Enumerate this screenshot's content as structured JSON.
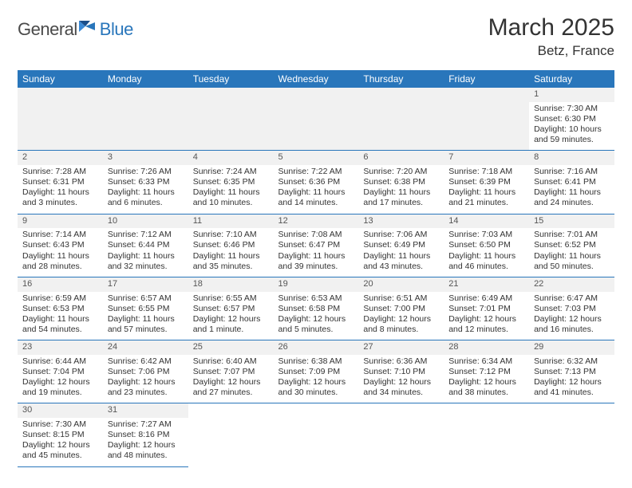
{
  "brand": {
    "general": "General",
    "blue": "Blue"
  },
  "title": "March 2025",
  "location": "Betz, France",
  "colors": {
    "header_bg": "#2976bb",
    "header_text": "#ffffff",
    "daynum_bg": "#f1f1f1",
    "border": "#2976bb",
    "body_text": "#333333",
    "logo_gray": "#4a4a4a",
    "logo_blue": "#2976bb"
  },
  "weekdays": [
    "Sunday",
    "Monday",
    "Tuesday",
    "Wednesday",
    "Thursday",
    "Friday",
    "Saturday"
  ],
  "days": {
    "1": {
      "sunrise": "7:30 AM",
      "sunset": "6:30 PM",
      "daylight": "10 hours and 59 minutes."
    },
    "2": {
      "sunrise": "7:28 AM",
      "sunset": "6:31 PM",
      "daylight": "11 hours and 3 minutes."
    },
    "3": {
      "sunrise": "7:26 AM",
      "sunset": "6:33 PM",
      "daylight": "11 hours and 6 minutes."
    },
    "4": {
      "sunrise": "7:24 AM",
      "sunset": "6:35 PM",
      "daylight": "11 hours and 10 minutes."
    },
    "5": {
      "sunrise": "7:22 AM",
      "sunset": "6:36 PM",
      "daylight": "11 hours and 14 minutes."
    },
    "6": {
      "sunrise": "7:20 AM",
      "sunset": "6:38 PM",
      "daylight": "11 hours and 17 minutes."
    },
    "7": {
      "sunrise": "7:18 AM",
      "sunset": "6:39 PM",
      "daylight": "11 hours and 21 minutes."
    },
    "8": {
      "sunrise": "7:16 AM",
      "sunset": "6:41 PM",
      "daylight": "11 hours and 24 minutes."
    },
    "9": {
      "sunrise": "7:14 AM",
      "sunset": "6:43 PM",
      "daylight": "11 hours and 28 minutes."
    },
    "10": {
      "sunrise": "7:12 AM",
      "sunset": "6:44 PM",
      "daylight": "11 hours and 32 minutes."
    },
    "11": {
      "sunrise": "7:10 AM",
      "sunset": "6:46 PM",
      "daylight": "11 hours and 35 minutes."
    },
    "12": {
      "sunrise": "7:08 AM",
      "sunset": "6:47 PM",
      "daylight": "11 hours and 39 minutes."
    },
    "13": {
      "sunrise": "7:06 AM",
      "sunset": "6:49 PM",
      "daylight": "11 hours and 43 minutes."
    },
    "14": {
      "sunrise": "7:03 AM",
      "sunset": "6:50 PM",
      "daylight": "11 hours and 46 minutes."
    },
    "15": {
      "sunrise": "7:01 AM",
      "sunset": "6:52 PM",
      "daylight": "11 hours and 50 minutes."
    },
    "16": {
      "sunrise": "6:59 AM",
      "sunset": "6:53 PM",
      "daylight": "11 hours and 54 minutes."
    },
    "17": {
      "sunrise": "6:57 AM",
      "sunset": "6:55 PM",
      "daylight": "11 hours and 57 minutes."
    },
    "18": {
      "sunrise": "6:55 AM",
      "sunset": "6:57 PM",
      "daylight": "12 hours and 1 minute."
    },
    "19": {
      "sunrise": "6:53 AM",
      "sunset": "6:58 PM",
      "daylight": "12 hours and 5 minutes."
    },
    "20": {
      "sunrise": "6:51 AM",
      "sunset": "7:00 PM",
      "daylight": "12 hours and 8 minutes."
    },
    "21": {
      "sunrise": "6:49 AM",
      "sunset": "7:01 PM",
      "daylight": "12 hours and 12 minutes."
    },
    "22": {
      "sunrise": "6:47 AM",
      "sunset": "7:03 PM",
      "daylight": "12 hours and 16 minutes."
    },
    "23": {
      "sunrise": "6:44 AM",
      "sunset": "7:04 PM",
      "daylight": "12 hours and 19 minutes."
    },
    "24": {
      "sunrise": "6:42 AM",
      "sunset": "7:06 PM",
      "daylight": "12 hours and 23 minutes."
    },
    "25": {
      "sunrise": "6:40 AM",
      "sunset": "7:07 PM",
      "daylight": "12 hours and 27 minutes."
    },
    "26": {
      "sunrise": "6:38 AM",
      "sunset": "7:09 PM",
      "daylight": "12 hours and 30 minutes."
    },
    "27": {
      "sunrise": "6:36 AM",
      "sunset": "7:10 PM",
      "daylight": "12 hours and 34 minutes."
    },
    "28": {
      "sunrise": "6:34 AM",
      "sunset": "7:12 PM",
      "daylight": "12 hours and 38 minutes."
    },
    "29": {
      "sunrise": "6:32 AM",
      "sunset": "7:13 PM",
      "daylight": "12 hours and 41 minutes."
    },
    "30": {
      "sunrise": "7:30 AM",
      "sunset": "8:15 PM",
      "daylight": "12 hours and 45 minutes."
    },
    "31": {
      "sunrise": "7:27 AM",
      "sunset": "8:16 PM",
      "daylight": "12 hours and 48 minutes."
    }
  },
  "labels": {
    "sunrise_prefix": "Sunrise: ",
    "sunset_prefix": "Sunset: ",
    "daylight_prefix": "Daylight: "
  },
  "layout": {
    "first_weekday_index": 6,
    "num_days": 31,
    "columns": 7
  }
}
